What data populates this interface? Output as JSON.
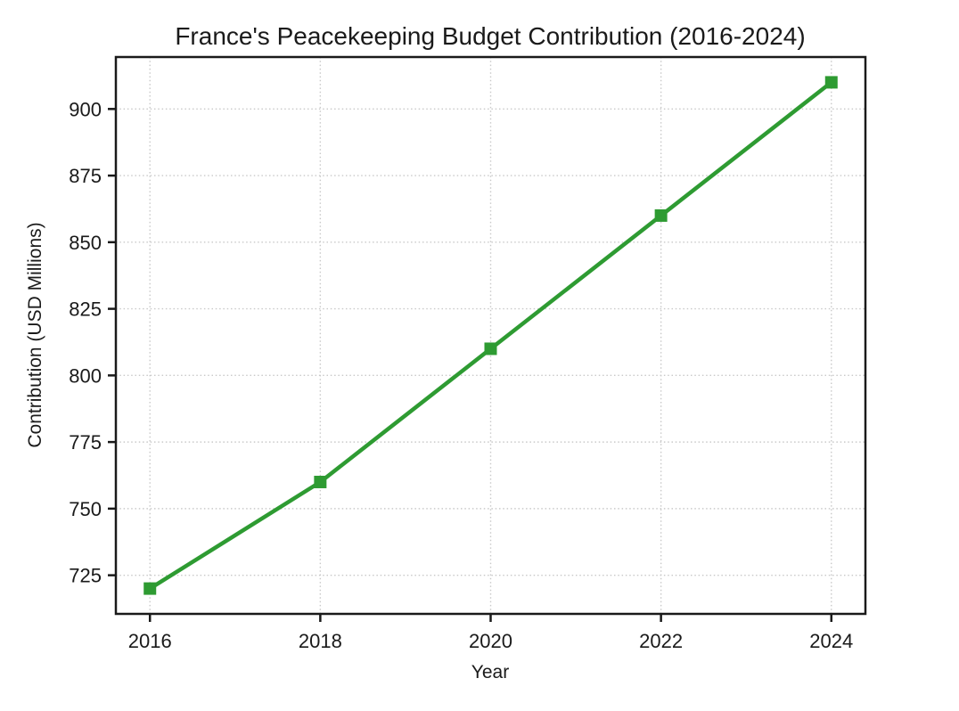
{
  "figure": {
    "background": "#ffffff"
  },
  "chart_data": {
    "type": "line",
    "title": "France's Peacekeeping Budget Contribution (2016-2024)",
    "xlabel": "Year",
    "ylabel": "Contribution (USD Millions)",
    "x": [
      2016,
      2018,
      2020,
      2022,
      2024
    ],
    "series": [
      {
        "name": "Contribution",
        "values": [
          720,
          760,
          810,
          860,
          910
        ]
      }
    ],
    "xticks": [
      2016,
      2018,
      2020,
      2022,
      2024
    ],
    "yticks": [
      725,
      750,
      775,
      800,
      825,
      850,
      875,
      900
    ],
    "xlim": [
      2015.6,
      2024.4
    ],
    "ylim": [
      710.5,
      919.5
    ],
    "grid": true,
    "grid_style": "dotted",
    "legend": "none",
    "line_color": "#2e9b32",
    "marker": "square",
    "marker_color": "#2e9b32",
    "text_color": "#1a1a1a",
    "grid_color": "#c9c9c9",
    "spine_color": "#1a1a1a"
  }
}
